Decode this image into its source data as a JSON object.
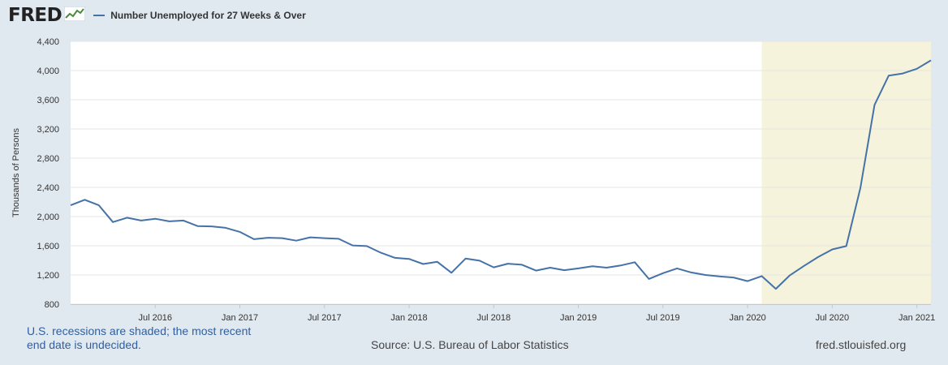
{
  "header": {
    "logo_text": "FRED",
    "logo_icon": "chart-line-icon"
  },
  "footer": {
    "recession_note": "U.S. recessions are shaded; the most recent end date is undecided.",
    "source": "Source: U.S. Bureau of Labor Statistics",
    "url": "fred.stlouisfed.org"
  },
  "colors": {
    "background": "#e1e9f0",
    "plot_background": "#ffffff",
    "line": "#4572a7",
    "recession_shade": "#f5f3dc",
    "grid": "#e6e6e6"
  },
  "chart_data": {
    "type": "line",
    "title": "",
    "xlabel": "",
    "ylabel": "Thousands of Persons",
    "ylim": [
      800,
      4400
    ],
    "yticks": [
      800,
      1200,
      1600,
      2000,
      2400,
      2800,
      3200,
      3600,
      4000,
      4400
    ],
    "ytick_labels": [
      "800",
      "1,200",
      "1,600",
      "2,000",
      "2,400",
      "2,800",
      "3,200",
      "3,600",
      "4,000",
      "4,400"
    ],
    "xlim": [
      "2016-01",
      "2021-02"
    ],
    "xticks": [
      "2016-07",
      "2017-01",
      "2017-07",
      "2018-01",
      "2018-07",
      "2019-01",
      "2019-07",
      "2020-01",
      "2020-07",
      "2021-01"
    ],
    "xtick_labels": [
      "Jul 2016",
      "Jan 2017",
      "Jul 2017",
      "Jan 2018",
      "Jul 2018",
      "Jan 2019",
      "Jul 2019",
      "Jan 2020",
      "Jul 2020",
      "Jan 2021"
    ],
    "grid": true,
    "legend_position": "top-left",
    "recession_shading": [
      {
        "start": "2020-02",
        "end": "2021-02"
      }
    ],
    "series": [
      {
        "name": "Number Unemployed for 27 Weeks & Over",
        "x": [
          "2016-01",
          "2016-02",
          "2016-03",
          "2016-04",
          "2016-05",
          "2016-06",
          "2016-07",
          "2016-08",
          "2016-09",
          "2016-10",
          "2016-11",
          "2016-12",
          "2017-01",
          "2017-02",
          "2017-03",
          "2017-04",
          "2017-05",
          "2017-06",
          "2017-07",
          "2017-08",
          "2017-09",
          "2017-10",
          "2017-11",
          "2017-12",
          "2018-01",
          "2018-02",
          "2018-03",
          "2018-04",
          "2018-05",
          "2018-06",
          "2018-07",
          "2018-08",
          "2018-09",
          "2018-10",
          "2018-11",
          "2018-12",
          "2019-01",
          "2019-02",
          "2019-03",
          "2019-04",
          "2019-05",
          "2019-06",
          "2019-07",
          "2019-08",
          "2019-09",
          "2019-10",
          "2019-11",
          "2019-12",
          "2020-01",
          "2020-02",
          "2020-03",
          "2020-04",
          "2020-05",
          "2020-06",
          "2020-07",
          "2020-08",
          "2020-09",
          "2020-10",
          "2020-11",
          "2020-12",
          "2021-01",
          "2021-02"
        ],
        "values": [
          2155,
          2230,
          2155,
          1925,
          1985,
          1945,
          1970,
          1935,
          1945,
          1870,
          1865,
          1845,
          1790,
          1690,
          1710,
          1705,
          1670,
          1715,
          1705,
          1695,
          1605,
          1595,
          1505,
          1435,
          1420,
          1350,
          1380,
          1230,
          1425,
          1395,
          1305,
          1355,
          1340,
          1260,
          1300,
          1265,
          1290,
          1320,
          1300,
          1330,
          1375,
          1145,
          1225,
          1290,
          1235,
          1200,
          1180,
          1165,
          1115,
          1185,
          1010,
          1195,
          1325,
          1445,
          1550,
          1595,
          2395,
          3530,
          3930,
          3960,
          4025,
          4140
        ]
      }
    ]
  }
}
